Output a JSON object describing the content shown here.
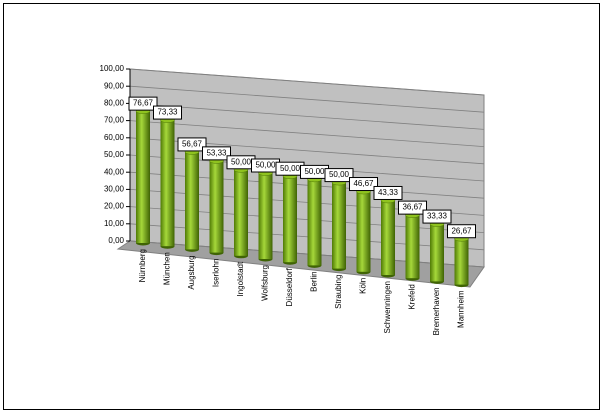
{
  "chart_data": {
    "type": "bar3d",
    "categories": [
      "Nürnberg",
      "München",
      "Augsburg",
      "Iserlohn",
      "Ingolstadt",
      "Wolfsburg",
      "Düsseldorf",
      "Berlin",
      "Straubing",
      "Köln",
      "Schwenningen",
      "Krefeld",
      "Bremerhaven",
      "Mannheim"
    ],
    "values": [
      76.67,
      73.33,
      56.67,
      53.33,
      50,
      50,
      50,
      50,
      50,
      46.67,
      43.33,
      36.67,
      33.33,
      26.67
    ],
    "value_labels": [
      "76,67",
      "73,33",
      "56,67",
      "53,33",
      "50,00",
      "50,00",
      "50,00",
      "50,00",
      "50,00",
      "46,67",
      "43,33",
      "36,67",
      "33,33",
      "26,67"
    ],
    "color": "#8fc31f",
    "ylim": [
      0,
      100
    ],
    "yticks": [
      {
        "value": 0,
        "label": "0,00"
      },
      {
        "value": 10,
        "label": "10,00"
      },
      {
        "value": 20,
        "label": "20,00"
      },
      {
        "value": 30,
        "label": "30,00"
      },
      {
        "value": 40,
        "label": "40,00"
      },
      {
        "value": 50,
        "label": "50,00"
      },
      {
        "value": 60,
        "label": "60,00"
      },
      {
        "value": 70,
        "label": "70,00"
      },
      {
        "value": 80,
        "label": "80,00"
      },
      {
        "value": 90,
        "label": "90,00"
      },
      {
        "value": 100,
        "label": "100,00"
      }
    ],
    "grid": true
  }
}
